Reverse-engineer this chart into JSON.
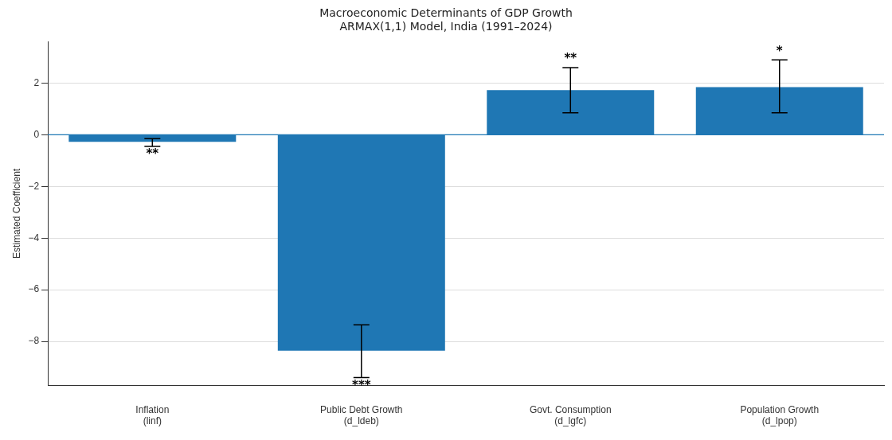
{
  "chart_data": {
    "type": "bar",
    "title": "Macroeconomic Determinants of GDP Growth",
    "subtitle": "ARMAX(1,1) Model, India (1991–2024)",
    "ylabel": "Estimated Coefficient",
    "categories": [
      "Inflation\n(linf)",
      "Public Debt Growth\n(d_ldeb)",
      "Govt. Consumption\n(d_lgfc)",
      "Population Growth\n(d_lpop)"
    ],
    "values": [
      -0.27,
      -8.36,
      1.73,
      1.85
    ],
    "color": "#1f77b4",
    "errors": [
      [
        -0.45,
        -0.15
      ],
      [
        -9.4,
        -7.36
      ],
      [
        0.85,
        2.6
      ],
      [
        0.85,
        2.9
      ]
    ],
    "ylim": [
      -9.7,
      3.6
    ],
    "yticks": [
      -8,
      -6,
      -4,
      -2,
      0,
      2
    ],
    "grid": "y",
    "ref_lines": [
      {
        "axis": "y",
        "value": 0,
        "color": "#1f77b4"
      }
    ],
    "annotations": [
      {
        "text": "**",
        "x": "Inflation\n(linf)",
        "y": -0.45
      },
      {
        "text": "***",
        "x": "Public Debt Growth\n(d_ldeb)",
        "y": -9.4
      },
      {
        "text": "**",
        "x": "Govt. Consumption\n(d_lgfc)",
        "y": 2.6
      },
      {
        "text": "*",
        "x": "Population Growth\n(d_lpop)",
        "y": 2.9
      }
    ]
  }
}
